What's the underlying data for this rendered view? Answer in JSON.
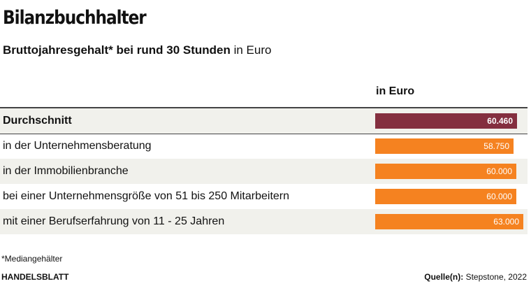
{
  "header": {
    "title": "Bilanzbuchhalter",
    "subtitle_bold": "Bruttojahresgehalt* bei rund 30 Stunden",
    "subtitle_unit": " in Euro"
  },
  "chart_data": {
    "type": "bar",
    "orientation": "horizontal",
    "column_header": "in Euro",
    "categories": [
      "Durchschnitt",
      "in der Unternehmensberatung",
      "in der Immobilienbranche",
      "bei einer Unternehmensgröße von 51 bis 250 Mitarbeitern",
      "mit einer Berufserfahrung von 11 - 25 Jahren"
    ],
    "values": [
      60460,
      58750,
      60000,
      60000,
      63000
    ],
    "value_labels": [
      "60.460",
      "58.750",
      "60.000",
      "60.000",
      "63.000"
    ],
    "xlim": [
      0,
      63000
    ],
    "highlight_color": "#842f3f",
    "bar_color": "#f58220"
  },
  "footer": {
    "footnote": "*Mediangehälter",
    "brand": "HANDELSBLATT",
    "source_label": "Quelle(n):",
    "source_value": " Stepstone, 2022"
  }
}
